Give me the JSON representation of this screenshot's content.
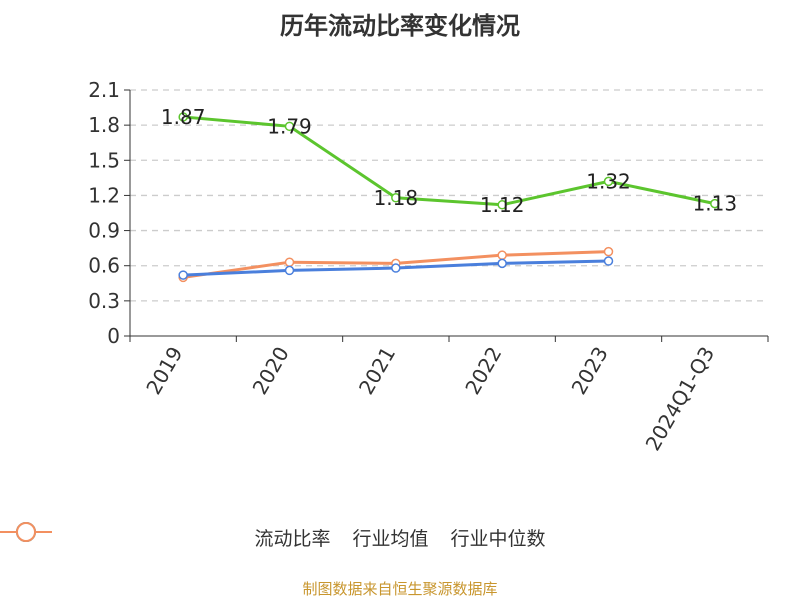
{
  "chart_data": {
    "type": "line",
    "title": "历年流动比率变化情况",
    "categories": [
      "2019",
      "2020",
      "2021",
      "2022",
      "2023",
      "2024Q1-Q3"
    ],
    "y_ticks": [
      "0",
      "0.3",
      "0.6",
      "0.9",
      "1.2",
      "1.5",
      "1.8",
      "2.1"
    ],
    "ylim": [
      0,
      2.1
    ],
    "grid": true,
    "legend_position": "bottom",
    "series": [
      {
        "name": "流动比率",
        "color": "#5cc52e",
        "values": [
          1.87,
          1.79,
          1.18,
          1.12,
          1.32,
          1.13
        ],
        "labels": [
          "1.87",
          "1.79",
          "1.18",
          "1.12",
          "1.32",
          "1.13"
        ]
      },
      {
        "name": "行业均值",
        "color": "#4a7fdc",
        "values": [
          0.52,
          0.56,
          0.58,
          0.62,
          0.64,
          null
        ]
      },
      {
        "name": "行业中位数",
        "color": "#f39060",
        "values": [
          0.5,
          0.63,
          0.62,
          0.69,
          0.72,
          null
        ]
      }
    ]
  },
  "footer": "制图数据来自恒生聚源数据库"
}
